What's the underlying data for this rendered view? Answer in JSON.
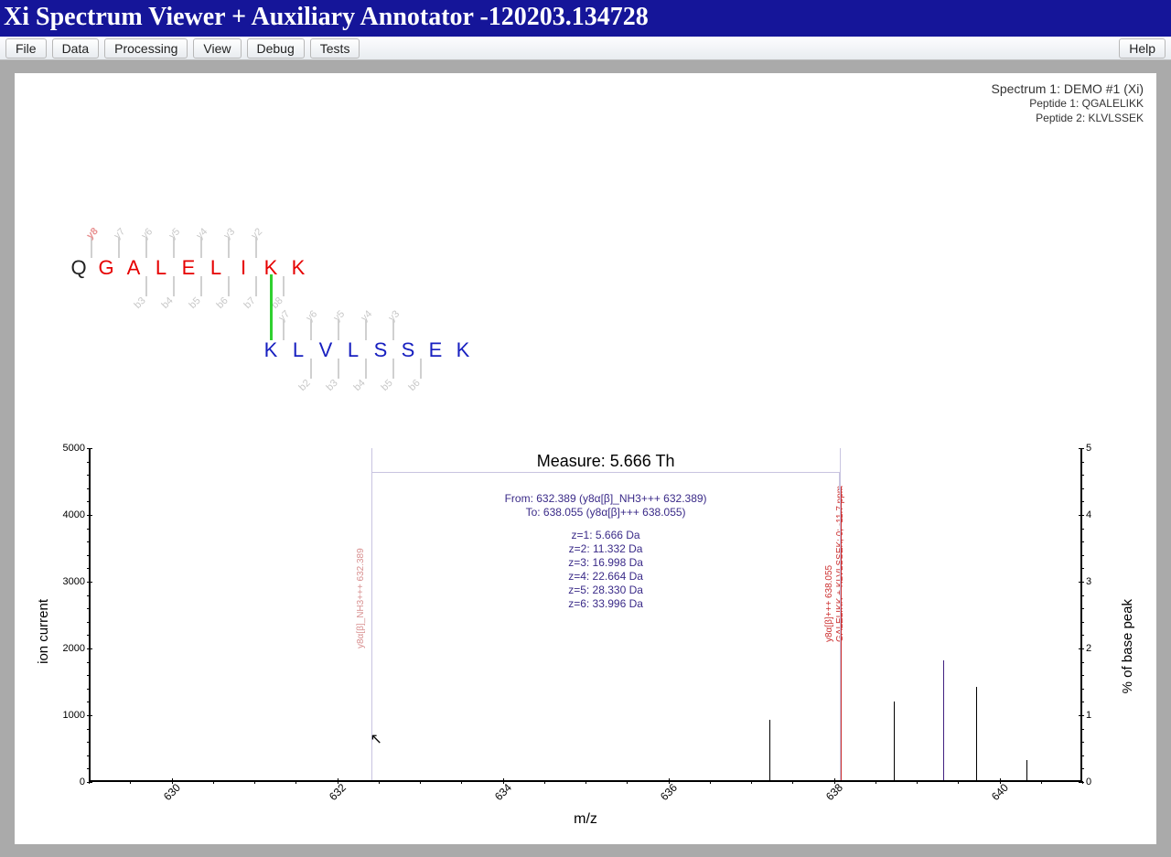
{
  "window": {
    "title": "Xi Spectrum Viewer + Auxiliary Annotator -120203.134728"
  },
  "menu": {
    "items": [
      "File",
      "Data",
      "Processing",
      "View",
      "Debug",
      "Tests"
    ],
    "help": "Help"
  },
  "info": {
    "spectrum": "Spectrum 1: DEMO #1 (Xi)",
    "peptide1": "Peptide 1: QGALELIKK",
    "peptide2": "Peptide 2: KLVLSSEK"
  },
  "peptides": {
    "p1": {
      "seq": [
        "Q",
        "G",
        "A",
        "L",
        "E",
        "L",
        "I",
        "K",
        "K"
      ],
      "color": "#e60000"
    },
    "p2": {
      "seq": [
        "K",
        "L",
        "V",
        "L",
        "S",
        "S",
        "E",
        "K"
      ],
      "color": "#1820c0"
    },
    "crosslink": {
      "p1_index": 7,
      "p2_index": 0
    },
    "p1_y_labels": [
      "y8",
      "y7",
      "y6",
      "y5",
      "y4",
      "y3",
      "y2"
    ],
    "p1_b_labels": [
      "b3",
      "b4",
      "b5",
      "b6",
      "b7",
      "b8"
    ],
    "p2_y_labels": [
      "y7",
      "y6",
      "y5",
      "y4",
      "y3"
    ],
    "p2_b_labels": [
      "b2",
      "b3",
      "b4",
      "b5",
      "b6"
    ]
  },
  "spectrum": {
    "type": "mass-spectrum",
    "xlabel": "m/z",
    "ylabel_left": "ion current",
    "ylabel_right": "% of base peak",
    "xlim": [
      629,
      641
    ],
    "xtick_step": 2,
    "ylim_left": [
      0,
      5000
    ],
    "ytick_left_step": 1000,
    "ylim_right": [
      0,
      5
    ],
    "ytick_right_step": 1,
    "background": "#ffffff",
    "peaks": [
      {
        "mz": 632.389,
        "intensity": 4300,
        "color": "#d89090",
        "label": "y8α[β]_NH3+++ 632.389",
        "label_color": "faded"
      },
      {
        "mz": 637.2,
        "intensity": 900,
        "color": "#000000"
      },
      {
        "mz": 638.055,
        "intensity": 4400,
        "color": "#cc3030",
        "label": "y8α[β]+++ 638.055\nGALELIKK + KLVLSSEK; 0; -11.7 ppm",
        "label_color": "red"
      },
      {
        "mz": 638.7,
        "intensity": 1180,
        "color": "#000000"
      },
      {
        "mz": 639.3,
        "intensity": 1800,
        "color": "#402080"
      },
      {
        "mz": 639.7,
        "intensity": 1400,
        "color": "#000000"
      },
      {
        "mz": 640.3,
        "intensity": 300,
        "color": "#000000"
      }
    ],
    "measure": {
      "title": "Measure: 5.666 Th",
      "from_mz": 632.389,
      "to_mz": 638.055,
      "from_text": "From: 632.389 (y8α[β]_NH3+++ 632.389)",
      "to_text": "To: 638.055 (y8α[β]+++ 638.055)",
      "z_lines": [
        "z=1: 5.666 Da",
        "z=2: 11.332 Da",
        "z=3: 16.998 Da",
        "z=4: 22.664 Da",
        "z=5: 28.330 Da",
        "z=6: 33.996 Da"
      ]
    },
    "cursor": {
      "mz": 632.45,
      "intensity": 450
    }
  }
}
